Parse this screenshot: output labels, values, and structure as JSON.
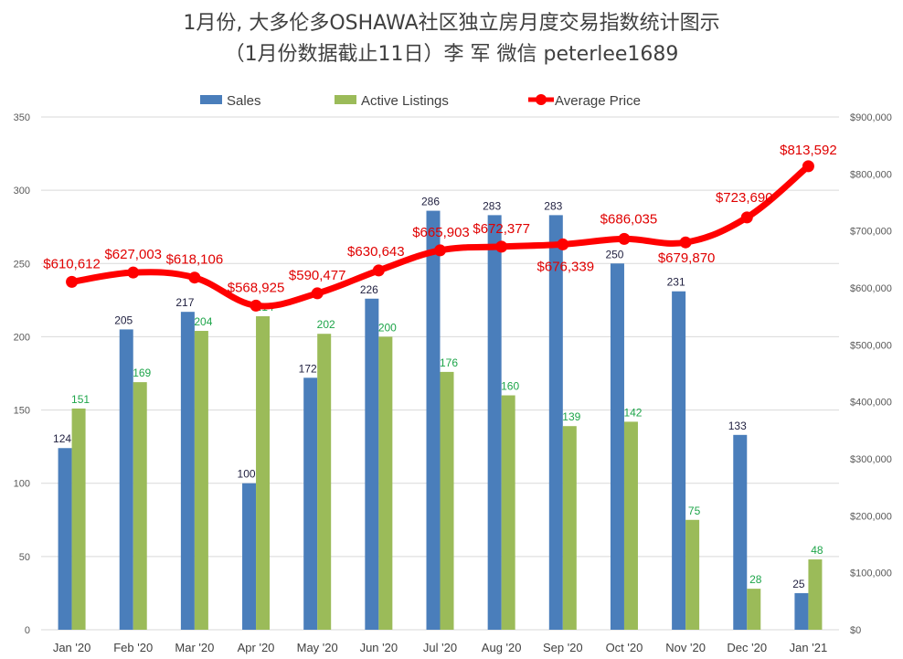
{
  "chart_data": {
    "type": "bar",
    "title_lines": [
      "1月份, 大多伦多OSHAWA社区独立房月度交易指数统计图示",
      "（1月份数据截止11日）李 军  微信  peterlee1689"
    ],
    "categories": [
      "Jan '20",
      "Feb '20",
      "Mar '20",
      "Apr '20",
      "May '20",
      "Jun '20",
      "Jul '20",
      "Aug '20",
      "Sep '20",
      "Oct '20",
      "Nov '20",
      "Dec '20",
      "Jan '21"
    ],
    "series": [
      {
        "name": "Sales",
        "type": "bar",
        "axis": "left",
        "color": "#4a7ebb",
        "values": [
          124,
          205,
          217,
          100,
          172,
          226,
          286,
          283,
          283,
          250,
          231,
          133,
          25
        ]
      },
      {
        "name": "Active Listings",
        "type": "bar",
        "axis": "left",
        "color": "#9bbb59",
        "values": [
          151,
          169,
          204,
          214,
          202,
          200,
          176,
          160,
          139,
          142,
          75,
          28,
          48
        ]
      },
      {
        "name": "Average Price",
        "type": "line",
        "axis": "right",
        "color": "#ff0000",
        "values": [
          610612,
          627003,
          618106,
          568925,
          590477,
          630643,
          665903,
          672377,
          676339,
          686035,
          679870,
          723690,
          813592
        ],
        "labels": [
          "$610,612",
          "$627,003",
          "$618,106",
          "$568,925",
          "$590,477",
          "$630,643",
          "$665,903",
          "$672,377",
          "$676,339",
          "$686,035",
          "$679,870",
          "$723,690",
          "$813,592"
        ]
      }
    ],
    "left_axis": {
      "min": 0,
      "max": 350,
      "ticks": [
        "0",
        "50",
        "100",
        "150",
        "200",
        "250",
        "300",
        "350"
      ]
    },
    "right_axis": {
      "min": 0,
      "max": 900000,
      "ticks": [
        "$0",
        "$100,000",
        "$200,000",
        "$300,000",
        "$400,000",
        "$500,000",
        "$600,000",
        "$700,000",
        "$800,000",
        "$900,000"
      ]
    },
    "legend": [
      "Sales",
      "Active Listings",
      "Average Price"
    ],
    "legend_position": "top",
    "grid": true
  }
}
